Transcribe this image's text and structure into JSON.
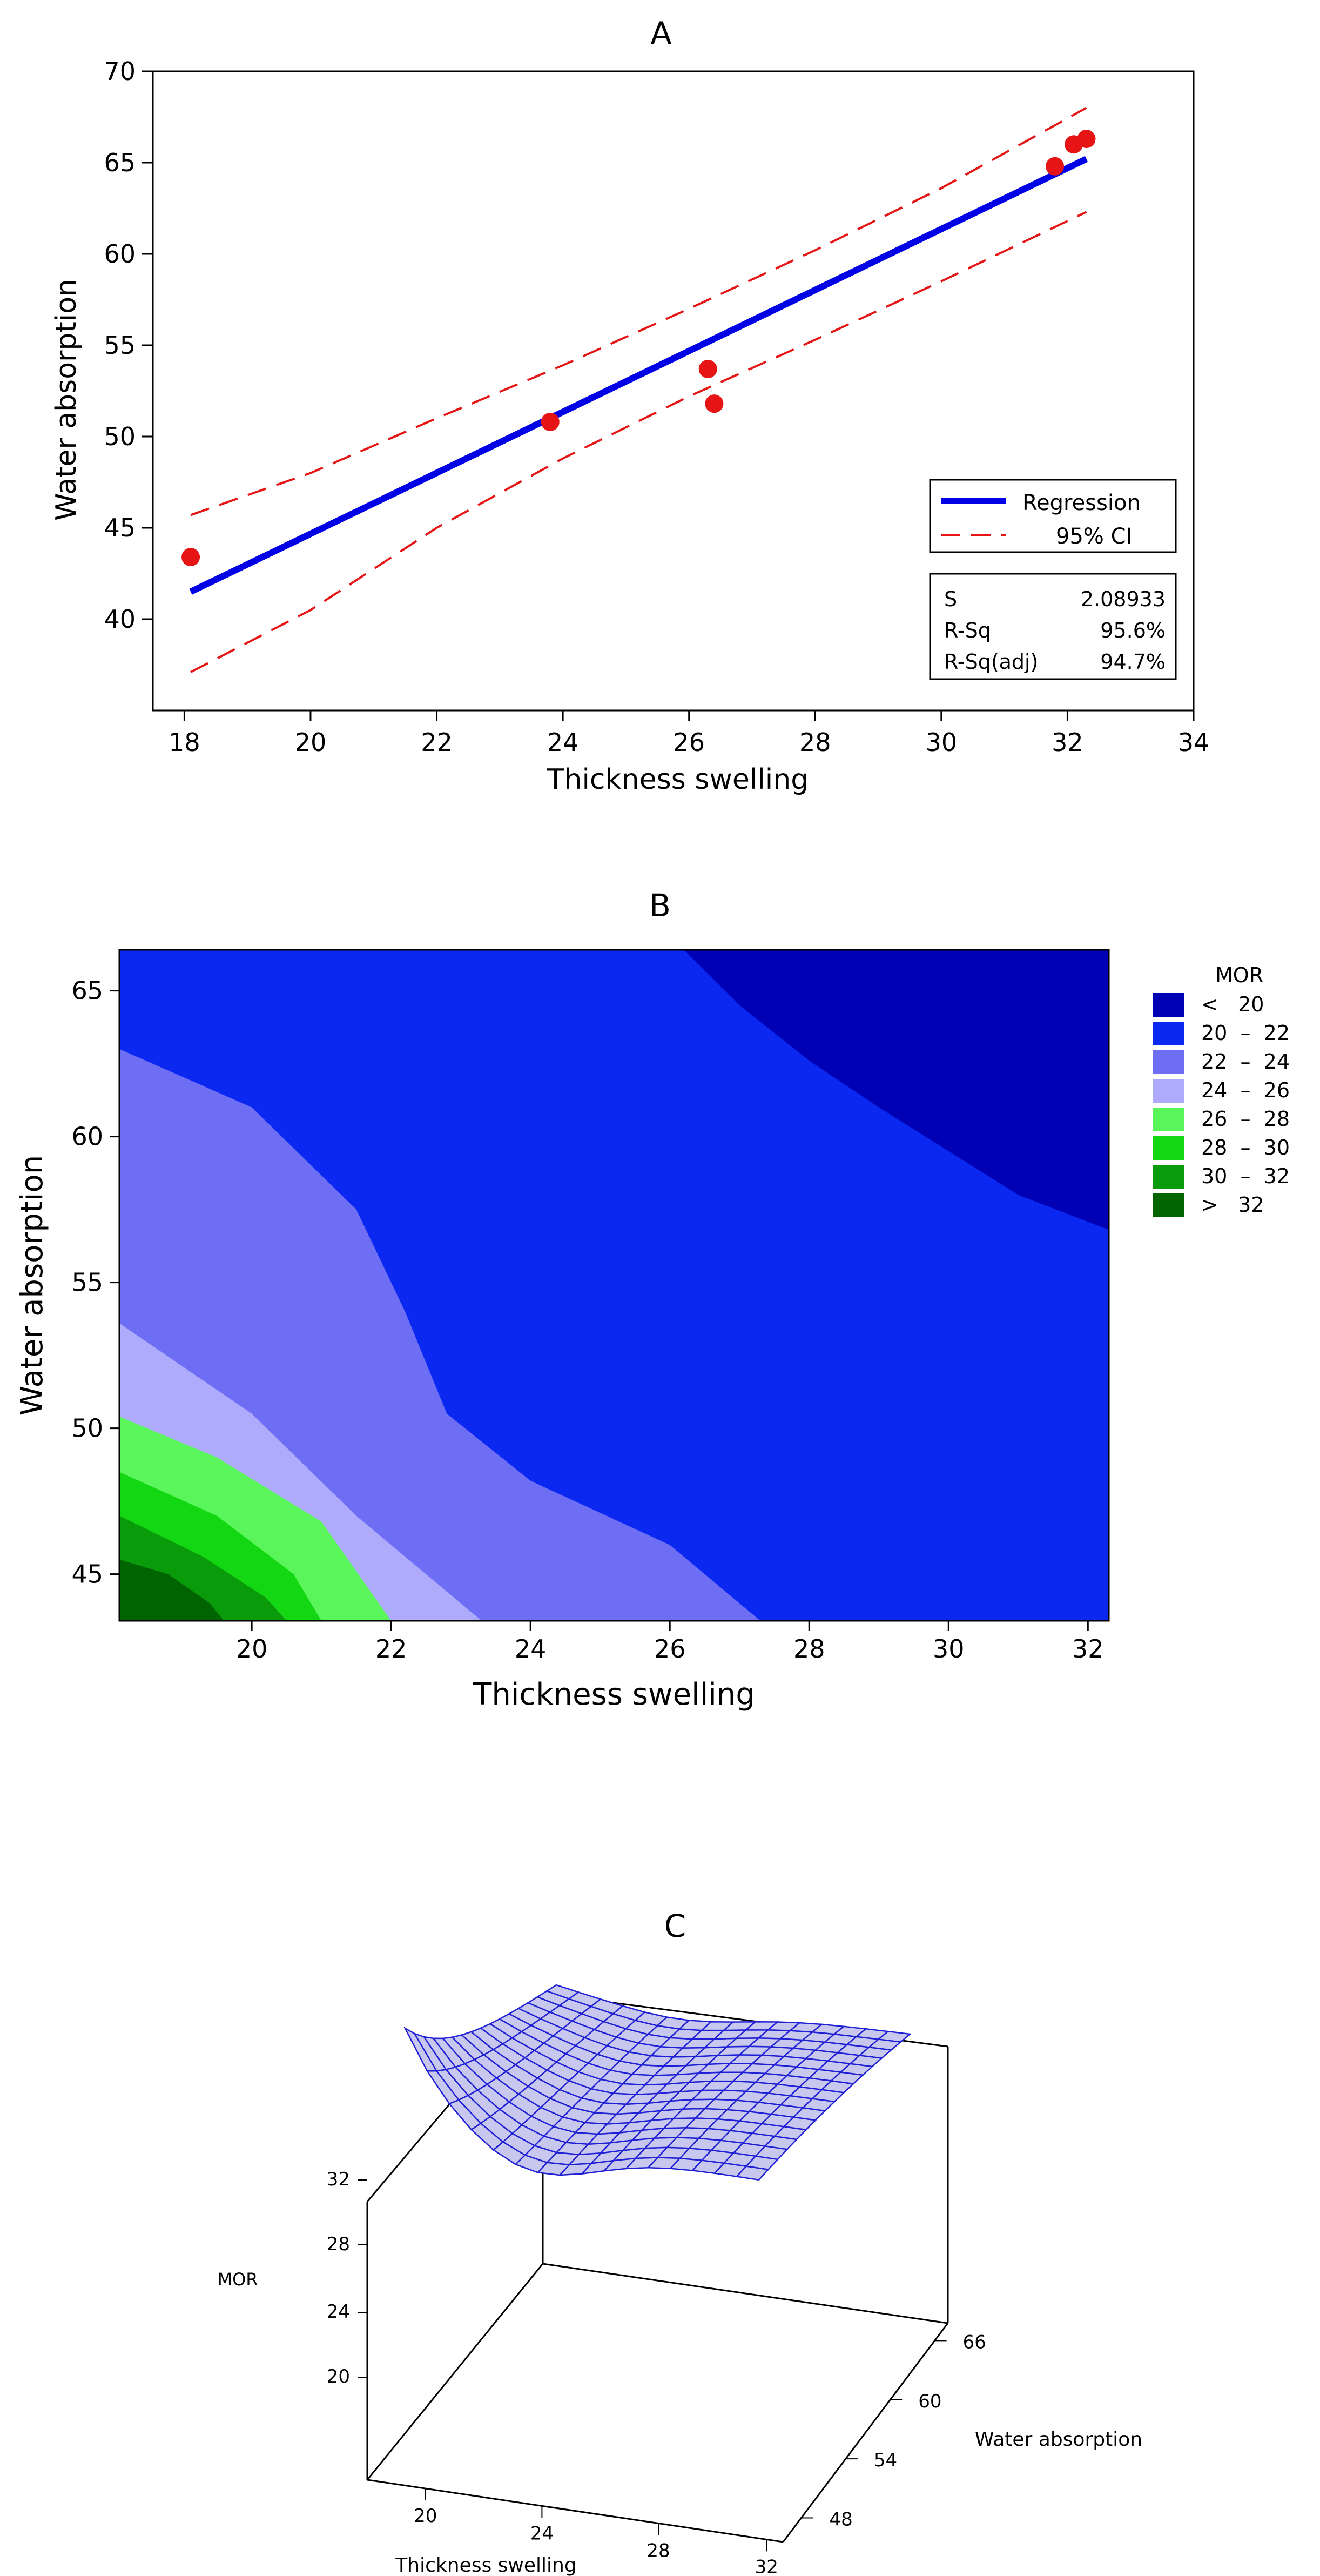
{
  "chart_data": [
    {
      "panel": "A",
      "type": "line",
      "title": "A",
      "xlabel": "Thickness swelling",
      "ylabel": "Water absorption",
      "xlim": [
        17.5,
        34
      ],
      "ylim": [
        35,
        70
      ],
      "xticks": [
        18,
        20,
        22,
        24,
        26,
        28,
        30,
        32,
        34
      ],
      "yticks": [
        40,
        45,
        50,
        55,
        60,
        65,
        70
      ],
      "regression": {
        "name": "Regression",
        "x": [
          18.1,
          32.3
        ],
        "y": [
          41.5,
          65.2
        ]
      },
      "ci_upper": {
        "name": "95% CI",
        "x": [
          18.1,
          20,
          22,
          24,
          26,
          28,
          30,
          32.3
        ],
        "y": [
          45.7,
          48.0,
          51.0,
          53.9,
          57.0,
          60.2,
          63.6,
          68.0
        ]
      },
      "ci_lower": {
        "x": [
          18.1,
          20,
          22,
          24,
          26,
          28,
          30,
          32.3
        ],
        "y": [
          37.1,
          40.5,
          45.0,
          48.8,
          52.2,
          55.3,
          58.5,
          62.3
        ]
      },
      "points": {
        "x": [
          18.1,
          23.8,
          26.3,
          26.4,
          31.8,
          32.1,
          32.3
        ],
        "y": [
          43.4,
          50.8,
          53.7,
          51.8,
          64.8,
          66.0,
          66.3
        ]
      },
      "legend": {
        "regression_label": "Regression",
        "ci_label": "95% CI"
      },
      "stats": [
        {
          "label": "S",
          "value": "2.08933"
        },
        {
          "label": "R-Sq",
          "value": "95.6%"
        },
        {
          "label": "R-Sq(adj)",
          "value": "94.7%"
        }
      ]
    },
    {
      "panel": "B",
      "type": "contour",
      "title": "B",
      "xlabel": "Thickness swelling",
      "ylabel": "Water absorption",
      "xlim": [
        18.1,
        32.3
      ],
      "ylim": [
        43.4,
        66.4
      ],
      "xticks": [
        20,
        22,
        24,
        26,
        28,
        30,
        32
      ],
      "yticks": [
        45,
        50,
        55,
        60,
        65
      ],
      "legend_title": "MOR",
      "levels": [
        {
          "label": "<   20",
          "color": "#0000b4"
        },
        {
          "label": "20  –  22",
          "color": "#0a28f0"
        },
        {
          "label": "22  –  24",
          "color": "#6e6ef5"
        },
        {
          "label": "24  –  26",
          "color": "#aeaafc"
        },
        {
          "label": "26  –  28",
          "color": "#5af55a"
        },
        {
          "label": "28  –  30",
          "color": "#14d714"
        },
        {
          "label": "30  –  32",
          "color": "#0a9b0a"
        },
        {
          "label": ">   32",
          "color": "#006400"
        }
      ],
      "boundaries": [
        {
          "level": "<20 / 20-22",
          "x": [
            26.2,
            27,
            28,
            29,
            30,
            31,
            32.3
          ],
          "y": [
            66.4,
            64.5,
            62.6,
            61.0,
            59.5,
            58.0,
            56.8
          ]
        },
        {
          "level": "20-22 / 22-24",
          "x": [
            18.1,
            20,
            21.5,
            22.2,
            22.8,
            24,
            26,
            27.3
          ],
          "y": [
            63.0,
            61.0,
            57.5,
            54.0,
            50.5,
            48.2,
            46.0,
            43.4
          ]
        },
        {
          "level": "22-24 / 24-26",
          "x": [
            18.1,
            20,
            21.5,
            23.3
          ],
          "y": [
            53.6,
            50.5,
            47.0,
            43.4
          ]
        },
        {
          "level": "24-26 / 26-28",
          "x": [
            18.1,
            19.5,
            21,
            22.0
          ],
          "y": [
            50.4,
            49.0,
            46.8,
            43.4
          ]
        },
        {
          "level": "26-28 / 28-30",
          "x": [
            18.1,
            19.5,
            20.6,
            21.0
          ],
          "y": [
            48.5,
            47.0,
            45.0,
            43.4
          ]
        },
        {
          "level": "28-30 / 30-32",
          "x": [
            18.1,
            19.3,
            20.2,
            20.5
          ],
          "y": [
            47.0,
            45.6,
            44.2,
            43.4
          ]
        },
        {
          "level": "30-32 / >32",
          "x": [
            18.1,
            18.8,
            19.4,
            19.6
          ],
          "y": [
            45.5,
            45.0,
            44.0,
            43.4
          ]
        }
      ]
    },
    {
      "panel": "C",
      "type": "surface",
      "title": "C",
      "zlabel": "MOR",
      "xlabel": "Thickness swelling",
      "ylabel": "Water absorption",
      "zticks": [
        "32",
        "28",
        "24",
        "20"
      ],
      "xticks": [
        "20",
        "24",
        "28",
        "32"
      ],
      "yticks": [
        "66",
        "60",
        "54",
        "48"
      ]
    }
  ]
}
